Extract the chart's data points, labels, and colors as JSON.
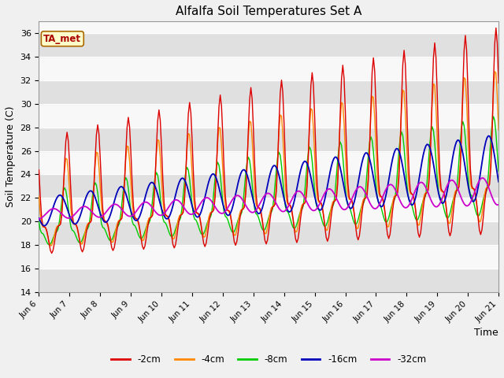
{
  "title": "Alfalfa Soil Temperatures Set A",
  "xlabel": "Time",
  "ylabel": "Soil Temperature (C)",
  "ylim": [
    14,
    37
  ],
  "xlim": [
    0,
    360
  ],
  "fig_bg": "#f0f0f0",
  "plot_bg": "#e8e8e8",
  "band_colors": [
    "#e0e0e0",
    "#f8f8f8"
  ],
  "series": {
    "-2cm": {
      "color": "#dd0000",
      "label": "-2cm"
    },
    "-4cm": {
      "color": "#ff8800",
      "label": "-4cm"
    },
    "-8cm": {
      "color": "#00cc00",
      "label": "-8cm"
    },
    "-16cm": {
      "color": "#0000bb",
      "label": "-16cm"
    },
    "-32cm": {
      "color": "#cc00cc",
      "label": "-32cm"
    }
  },
  "annotation": "TA_met",
  "x_tick_labels": [
    "Jun 6",
    "Jun 7",
    "Jun 8",
    "Jun 9",
    "Jun 10",
    "Jun 11",
    "Jun 12",
    "Jun 13",
    "Jun 14",
    "Jun 15",
    "Jun 16",
    "Jun 17",
    "Jun 18",
    "Jun 19",
    "Jun 20",
    "Jun 21"
  ],
  "x_tick_positions": [
    0,
    24,
    48,
    72,
    96,
    120,
    144,
    168,
    192,
    216,
    240,
    264,
    288,
    312,
    336,
    360
  ],
  "linewidth": 1.0
}
